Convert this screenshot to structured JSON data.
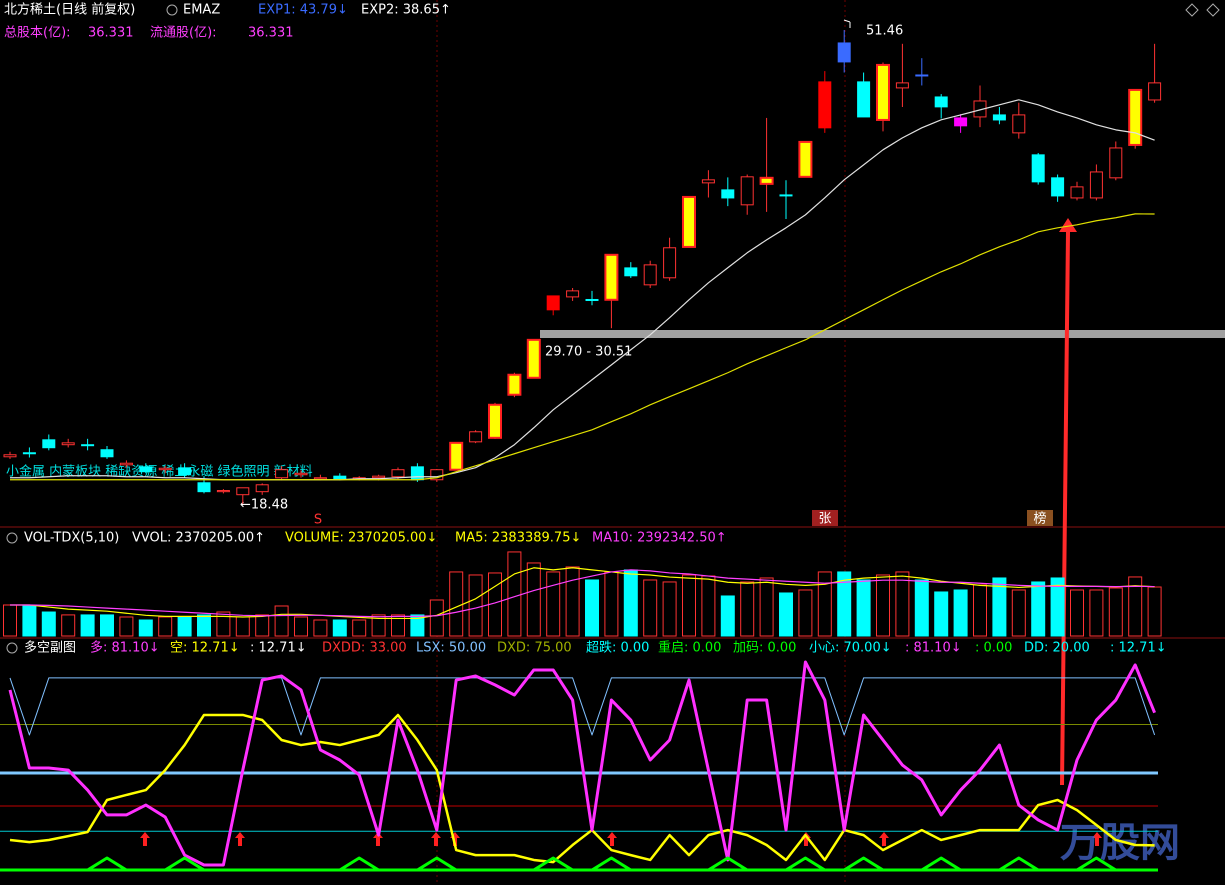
{
  "header": {
    "row1": [
      {
        "text": "北方稀土(日线 前复权)",
        "color": "#ffffff"
      },
      {
        "text": "EMAZ",
        "color": "#ffffff"
      },
      {
        "text": "EXP1: 43.79↓",
        "color": "#3a6bff"
      },
      {
        "text": "EXP2: 38.65↑",
        "color": "#ffffff"
      }
    ],
    "row2": [
      {
        "text": "总股本(亿):",
        "color": "#ff40ff"
      },
      {
        "text": "36.331",
        "color": "#ff40ff"
      },
      {
        "text": "流通股(亿):",
        "color": "#ff40ff"
      },
      {
        "text": "36.331",
        "color": "#ff40ff"
      }
    ],
    "vol": [
      {
        "text": "VOL-TDX(5,10)",
        "color": "#ffffff"
      },
      {
        "text": "VVOL: 2370205.00↑",
        "color": "#ffffff"
      },
      {
        "text": "VOLUME: 2370205.00↓",
        "color": "#ffff00"
      },
      {
        "text": "MA5: 2383389.75↓",
        "color": "#ffff00"
      },
      {
        "text": "MA10: 2392342.50↑",
        "color": "#ff40ff"
      }
    ],
    "ind": [
      {
        "text": "多空副图",
        "color": "#ffffff"
      },
      {
        "text": "多: 81.10↓",
        "color": "#ff40ff"
      },
      {
        "text": "空: 12.71↓",
        "color": "#ffff00"
      },
      {
        "text": ": 12.71↓",
        "color": "#ffffff"
      },
      {
        "text": "DXDD: 33.00",
        "color": "#ff3232"
      },
      {
        "text": "LSX: 50.00",
        "color": "#80c0ff"
      },
      {
        "text": "DXD: 75.00",
        "color": "#a0b000"
      },
      {
        "text": "超跌: 0.00",
        "color": "#00ffff"
      },
      {
        "text": "重启: 0.00",
        "color": "#00ff00"
      },
      {
        "text": "加码: 0.00",
        "color": "#00ff00"
      },
      {
        "text": "小心: 70.00↓",
        "color": "#00ffff"
      },
      {
        "text": ": 81.10↓",
        "color": "#ff40ff"
      },
      {
        "text": ": 0.00",
        "color": "#00ff00"
      },
      {
        "text": "DD: 20.00",
        "color": "#00ffff"
      },
      {
        "text": ": 12.71↓",
        "color": "#00ffff"
      }
    ]
  },
  "annotations": {
    "high": "51.46",
    "range": "29.70 - 30.51",
    "low": "←18.48",
    "concepts": "小金属 内蒙板块  稀缺资源 稀土永磁 绿色照明 新材料",
    "s": "S",
    "zhang": "张",
    "bang": "榜",
    "watermark": "万股网"
  },
  "chart_data": [
    {
      "type": "candlestick",
      "ylim": [
        17,
        53.55
      ],
      "up_color": "#ff3232",
      "open": [
        21.75,
        22.03,
        22.93,
        22.59,
        22.59,
        22.24,
        21.19,
        21.05,
        20.85,
        20.98,
        19.94,
        19.32,
        19.11,
        19.32,
        20.29,
        20.5,
        20.2,
        20.4,
        20.2,
        20.29,
        20.36,
        21.05,
        20.15,
        20.85,
        22.79,
        23.07,
        26.07,
        27.25,
        32.95,
        32.88,
        32.7,
        32.68,
        34.9,
        33.72,
        34.21,
        36.36,
        40.82,
        40.33,
        39.29,
        40.75,
        39.98,
        41.24,
        47.85,
        50.56,
        47.85,
        45.2,
        47.43,
        48.33,
        46.8,
        45.34,
        45.41,
        45.55,
        44.3,
        42.77,
        41.17,
        39.77,
        39.77,
        41.17,
        43.46,
        46.59
      ],
      "high": [
        22.1,
        22.4,
        23.3,
        23.0,
        23.0,
        22.5,
        21.5,
        21.3,
        21.1,
        21.3,
        20.4,
        19.5,
        19.5,
        19.9,
        21.1,
        20.8,
        20.5,
        20.6,
        20.4,
        20.5,
        21.0,
        21.3,
        20.9,
        22.72,
        23.6,
        25.5,
        27.6,
        29.9,
        32.95,
        33.5,
        33.3,
        35.81,
        35.3,
        35.4,
        37.0,
        39.84,
        41.7,
        41.2,
        41.4,
        45.34,
        41.0,
        43.7,
        48.6,
        51.46,
        48.5,
        49.2,
        50.5,
        49.5,
        47.0,
        45.6,
        47.6,
        46.1,
        46.4,
        42.9,
        41.4,
        40.9,
        42.1,
        43.7,
        47.3,
        50.5
      ],
      "low": [
        21.6,
        21.7,
        22.2,
        22.4,
        22.2,
        21.6,
        21.0,
        20.6,
        20.6,
        20.3,
        19.2,
        19.2,
        18.48,
        19.1,
        20.1,
        20.3,
        20.1,
        20.1,
        20.1,
        20.1,
        20.2,
        20.0,
        20.0,
        20.8,
        22.7,
        23.0,
        25.9,
        27.2,
        31.6,
        32.6,
        32.3,
        30.7,
        34.2,
        33.5,
        34.0,
        36.3,
        39.8,
        39.2,
        38.6,
        38.8,
        38.3,
        41.2,
        44.3,
        48.5,
        45.4,
        44.4,
        46.1,
        47.6,
        45.3,
        44.3,
        44.7,
        44.9,
        43.9,
        40.7,
        39.5,
        39.6,
        39.6,
        41.0,
        43.2,
        46.4
      ],
      "close": [
        21.89,
        22.0,
        22.38,
        22.72,
        22.55,
        21.75,
        21.3,
        20.71,
        20.95,
        20.5,
        19.32,
        19.4,
        19.59,
        19.8,
        20.85,
        20.6,
        20.29,
        20.2,
        20.29,
        20.4,
        20.85,
        20.15,
        20.85,
        22.72,
        23.49,
        25.37,
        27.46,
        29.89,
        31.98,
        33.3,
        32.68,
        35.81,
        34.35,
        35.11,
        36.3,
        39.84,
        41.03,
        39.77,
        41.24,
        41.17,
        39.95,
        43.67,
        44.65,
        49.24,
        45.41,
        49.03,
        47.78,
        48.3,
        46.11,
        44.79,
        46.52,
        45.2,
        45.55,
        40.89,
        39.91,
        40.54,
        41.58,
        43.25,
        47.29,
        47.78
      ],
      "colors": [
        "#ff3232",
        "#00ffff",
        "#00ffff",
        "#ff3232",
        "#00ffff",
        "#00ffff",
        "#ff3232",
        "#00ffff",
        "#ff3232",
        "#00ffff",
        "#00ffff",
        "#ff3232",
        "#ff3232",
        "#ff3232",
        "#ff3232",
        "#ff3232",
        "#ff3232",
        "#00ffff",
        "#ff3232",
        "#ff3232",
        "#ff3232",
        "#00ffff",
        "#ff3232",
        "#ffff00",
        "#ff3232",
        "#ffff00",
        "#ffff00",
        "#ffff00",
        "#ff0000",
        "#ff3232",
        "#00ffff",
        "#ffff00",
        "#00ffff",
        "#ff3232",
        "#ff3232",
        "#ffff00",
        "#ff3232",
        "#00ffff",
        "#ff3232",
        "#ffff00",
        "#00ffff",
        "#ffff00",
        "#ff0000",
        "#3a6bff",
        "#00ffff",
        "#ffff00",
        "#ff3232",
        "#3a6bff",
        "#00ffff",
        "#ff00ff",
        "#ff3232",
        "#00ffff",
        "#ff3232",
        "#00ffff",
        "#00ffff",
        "#ff3232",
        "#ff3232",
        "#ff3232",
        "#ffff00",
        "#ff3232"
      ],
      "series": [
        {
          "color": "#e0e0e0",
          "values": [
            20.29,
            20.29,
            20.36,
            20.43,
            20.43,
            20.43,
            20.36,
            20.36,
            20.29,
            20.29,
            20.22,
            20.15,
            20.15,
            20.15,
            20.15,
            20.15,
            20.15,
            20.15,
            20.22,
            20.22,
            20.29,
            20.36,
            20.36,
            20.64,
            20.99,
            21.68,
            22.59,
            23.77,
            25.02,
            26.07,
            27.11,
            28.15,
            29.2,
            30.24,
            31.43,
            32.68,
            33.86,
            34.91,
            35.95,
            36.85,
            37.69,
            38.59,
            39.78,
            41.03,
            42.07,
            43.12,
            43.95,
            44.65,
            45.21,
            45.55,
            45.9,
            46.25,
            46.6,
            46.25,
            45.76,
            45.34,
            44.86,
            44.51,
            44.3,
            43.79
          ]
        },
        {
          "color": "#e0e000",
          "values": [
            20.15,
            20.15,
            20.15,
            20.15,
            20.15,
            20.15,
            20.15,
            20.15,
            20.15,
            20.15,
            20.15,
            20.15,
            20.15,
            20.15,
            20.15,
            20.15,
            20.15,
            20.15,
            20.15,
            20.15,
            20.15,
            20.15,
            20.29,
            20.71,
            21.12,
            21.54,
            21.96,
            22.38,
            22.8,
            23.21,
            23.63,
            24.19,
            24.74,
            25.37,
            25.93,
            26.48,
            27.04,
            27.6,
            28.22,
            28.78,
            29.34,
            29.89,
            30.59,
            31.29,
            31.98,
            32.68,
            33.37,
            34.0,
            34.63,
            35.18,
            35.81,
            36.37,
            36.85,
            37.41,
            37.69,
            37.9,
            38.18,
            38.39,
            38.66,
            38.65
          ]
        }
      ]
    },
    {
      "type": "bar",
      "ylim": [
        0,
        4160000
      ],
      "values": [
        1500000,
        1500000,
        1160000,
        1020000,
        1020000,
        1020000,
        920000,
        774000,
        920000,
        920000,
        1020000,
        1160000,
        920000,
        1020000,
        1452000,
        920000,
        774000,
        774000,
        774000,
        1020000,
        1020000,
        1020000,
        1742000,
        3098000,
        2952000,
        3049000,
        4066000,
        3533000,
        3098000,
        3340000,
        2710000,
        3098000,
        3194000,
        2710000,
        2614000,
        2952000,
        2904000,
        1936000,
        2614000,
        2807000,
        2081000,
        2226000,
        3098000,
        3098000,
        2710000,
        2952000,
        3098000,
        2710000,
        2130000,
        2226000,
        2468000,
        2807000,
        2226000,
        2614000,
        2807000,
        2226000,
        2226000,
        2323000,
        2856000,
        2370205
      ],
      "series": [
        {
          "color": "#ffff00",
          "values": [
            1500000,
            1500000,
            1400000,
            1300000,
            1250000,
            1200000,
            1100000,
            1000000,
            950000,
            950000,
            950000,
            950000,
            920000,
            950000,
            1050000,
            1050000,
            1000000,
            950000,
            900000,
            850000,
            850000,
            850000,
            1000000,
            1400000,
            1800000,
            2400000,
            3000000,
            3300000,
            3200000,
            3300000,
            3200000,
            3100000,
            3000000,
            2950000,
            2850000,
            2800000,
            2750000,
            2600000,
            2550000,
            2600000,
            2500000,
            2450000,
            2500000,
            2700000,
            2800000,
            2850000,
            2900000,
            2800000,
            2650000,
            2550000,
            2450000,
            2400000,
            2350000,
            2400000,
            2450000,
            2420000,
            2400000,
            2380000,
            2430000,
            2383389.75
          ]
        },
        {
          "color": "#ff40ff",
          "values": [
            1500000,
            1500000,
            1480000,
            1450000,
            1400000,
            1350000,
            1300000,
            1250000,
            1200000,
            1150000,
            1100000,
            1050000,
            1000000,
            980000,
            990000,
            1000000,
            1000000,
            980000,
            950000,
            930000,
            950000,
            950000,
            980000,
            1150000,
            1350000,
            1600000,
            1900000,
            2200000,
            2450000,
            2700000,
            2900000,
            3100000,
            3200000,
            3150000,
            3050000,
            3000000,
            2900000,
            2800000,
            2750000,
            2700000,
            2650000,
            2600000,
            2550000,
            2600000,
            2650000,
            2700000,
            2700000,
            2650000,
            2600000,
            2600000,
            2550000,
            2500000,
            2450000,
            2420000,
            2400000,
            2400000,
            2400000,
            2390000,
            2400000,
            2392342.5
          ]
        }
      ]
    },
    {
      "type": "line",
      "ylim": [
        -7.7,
        110.8
      ],
      "hlines": [
        {
          "value": 75,
          "color": "#7a8a00",
          "width": 1
        },
        {
          "value": 50,
          "color": "#80c8ff",
          "width": 3
        },
        {
          "value": 33,
          "color": "#c00000",
          "width": 1
        },
        {
          "value": 20,
          "color": "#00c8d0",
          "width": 1
        },
        {
          "value": 0,
          "color": "#00ff00",
          "width": 3
        }
      ],
      "series": [
        {
          "color": "#80c0ff",
          "width": 1,
          "values": [
            99,
            69.6,
            99,
            99,
            99,
            99,
            99,
            99,
            99,
            99,
            99,
            99,
            99,
            99,
            99,
            69.6,
            99,
            99,
            99,
            99,
            99,
            99,
            99,
            99,
            99,
            99,
            99,
            99,
            99,
            99,
            69.6,
            99,
            99,
            99,
            99,
            99,
            99,
            99,
            99,
            99,
            99,
            99,
            99,
            69.6,
            99,
            99,
            99,
            99,
            99,
            99,
            99,
            99,
            99,
            99,
            99,
            99,
            99,
            99,
            99,
            69.6
          ]
        },
        {
          "color": "#ffff00",
          "width": 2.5,
          "values": [
            15.5,
            14.4,
            15.5,
            17.5,
            19.6,
            36.1,
            38.7,
            41.2,
            51.5,
            64.4,
            79.9,
            79.9,
            79.9,
            77.3,
            67.0,
            64.4,
            66.0,
            64.4,
            67.0,
            69.6,
            79.9,
            67.0,
            51.5,
            10.3,
            7.7,
            7.7,
            7.7,
            5.2,
            4.1,
            12.9,
            20.6,
            10.3,
            7.7,
            5.2,
            18.0,
            7.7,
            18.0,
            20.6,
            18.0,
            12.9,
            5.2,
            18.0,
            5.2,
            20.6,
            18.0,
            10.3,
            15.5,
            20.6,
            15.5,
            18.0,
            20.6,
            20.6,
            20.6,
            33.5,
            36.1,
            30.9,
            23.2,
            15.5,
            12.9,
            12.71
          ]
        },
        {
          "color": "#ff30ff",
          "width": 3,
          "values": [
            92.8,
            52.6,
            52.6,
            51.5,
            41.2,
            28.4,
            28.4,
            33.5,
            27.3,
            7.7,
            2.6,
            2.6,
            51.5,
            97.9,
            100,
            92.8,
            61.9,
            56.7,
            49.0,
            18.0,
            77.3,
            51.5,
            20.6,
            97.9,
            100,
            95.4,
            90.2,
            103.1,
            103.1,
            87.6,
            20.6,
            87.6,
            77.3,
            56.7,
            67.0,
            97.9,
            51.5,
            5.2,
            87.6,
            87.6,
            20.6,
            107.2,
            87.6,
            20.6,
            79.9,
            67.0,
            54.1,
            46.4,
            28.4,
            41.2,
            51.5,
            64.4,
            33.5,
            25.8,
            20.6,
            56.7,
            77.3,
            87.6,
            105.7,
            81.1
          ]
        },
        {
          "color": "#00ff00",
          "width": 3,
          "values": [
            0,
            0,
            0,
            0,
            0,
            6.2,
            0,
            0,
            0,
            6.2,
            0,
            0,
            0,
            0,
            0,
            0,
            0,
            0,
            6.2,
            0,
            0,
            0,
            6.2,
            0,
            0,
            0,
            0,
            0,
            6.2,
            0,
            0,
            6.2,
            0,
            0,
            0,
            0,
            0,
            6.2,
            0,
            0,
            0,
            6.2,
            0,
            0,
            6.2,
            0,
            0,
            0,
            6.2,
            0,
            0,
            0,
            6.2,
            0,
            0,
            0,
            6.2,
            0,
            0,
            0
          ]
        }
      ]
    }
  ]
}
